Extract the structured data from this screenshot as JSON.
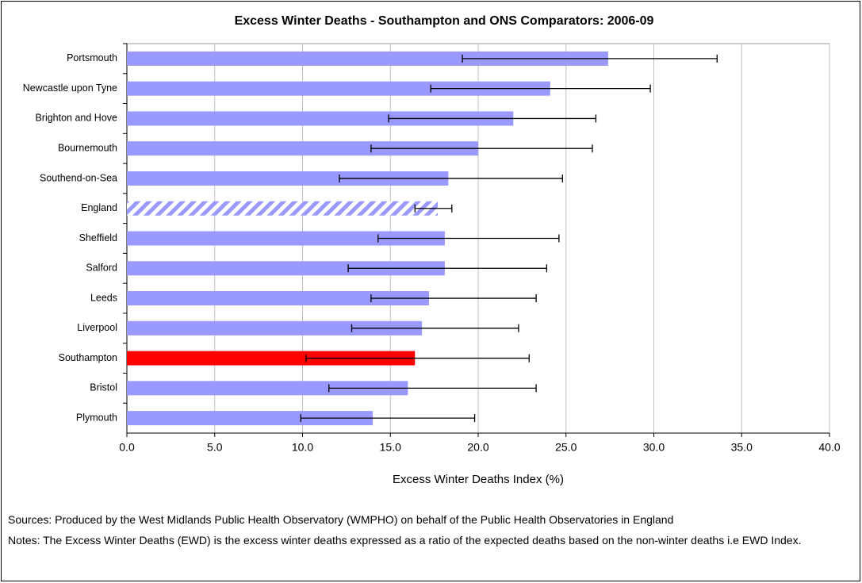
{
  "chart_data": {
    "type": "hbar",
    "title": "Excess Winter Deaths - Southampton and ONS Comparators: 2006-09",
    "xlabel": "Excess Winter Deaths Index (%)",
    "categories": [
      "Portsmouth",
      "Newcastle upon Tyne",
      "Brighton and Hove",
      "Bournemouth",
      "Southend-on-Sea",
      "England",
      "Sheffield",
      "Salford",
      "Leeds",
      "Liverpool",
      "Southampton",
      "Bristol",
      "Plymouth"
    ],
    "values": [
      27.4,
      24.1,
      22.0,
      20.0,
      18.3,
      17.7,
      18.1,
      18.1,
      17.2,
      16.8,
      16.4,
      16.0,
      14.0
    ],
    "ci_low": [
      19.1,
      17.3,
      14.9,
      13.9,
      12.1,
      16.4,
      14.3,
      12.6,
      13.9,
      12.8,
      10.2,
      11.5,
      9.9
    ],
    "ci_high": [
      33.6,
      29.8,
      26.7,
      26.5,
      24.8,
      18.5,
      24.6,
      23.9,
      23.3,
      22.3,
      22.9,
      23.3,
      19.8
    ],
    "colors": [
      "#9999ff",
      "#9999ff",
      "#9999ff",
      "#9999ff",
      "#9999ff",
      "#9999ff",
      "#9999ff",
      "#9999ff",
      "#9999ff",
      "#9999ff",
      "#ff0000",
      "#9999ff",
      "#9999ff"
    ],
    "hatch": [
      false,
      false,
      false,
      false,
      false,
      true,
      false,
      false,
      false,
      false,
      false,
      false,
      false
    ],
    "xlim": [
      0,
      40
    ],
    "xticks": [
      {
        "value": 0,
        "label": "0.0"
      },
      {
        "value": 5,
        "label": "5.0"
      },
      {
        "value": 10,
        "label": "10.0"
      },
      {
        "value": 15,
        "label": "15.0"
      },
      {
        "value": 20,
        "label": "20.0"
      },
      {
        "value": 25,
        "label": "25.0"
      },
      {
        "value": 30,
        "label": "30.0"
      },
      {
        "value": 35,
        "label": "35.0"
      },
      {
        "value": 40,
        "label": "40.0"
      }
    ],
    "grid": true,
    "notes": [
      "Sources: Produced by the West Midlands Public Health Observatory (WMPHO) on behalf of the Public Health Observatories in England",
      "Notes: The Excess Winter Deaths (EWD) is the excess winter deaths expressed as a ratio of the expected deaths based on the non-winter deaths i.e EWD Index."
    ]
  }
}
